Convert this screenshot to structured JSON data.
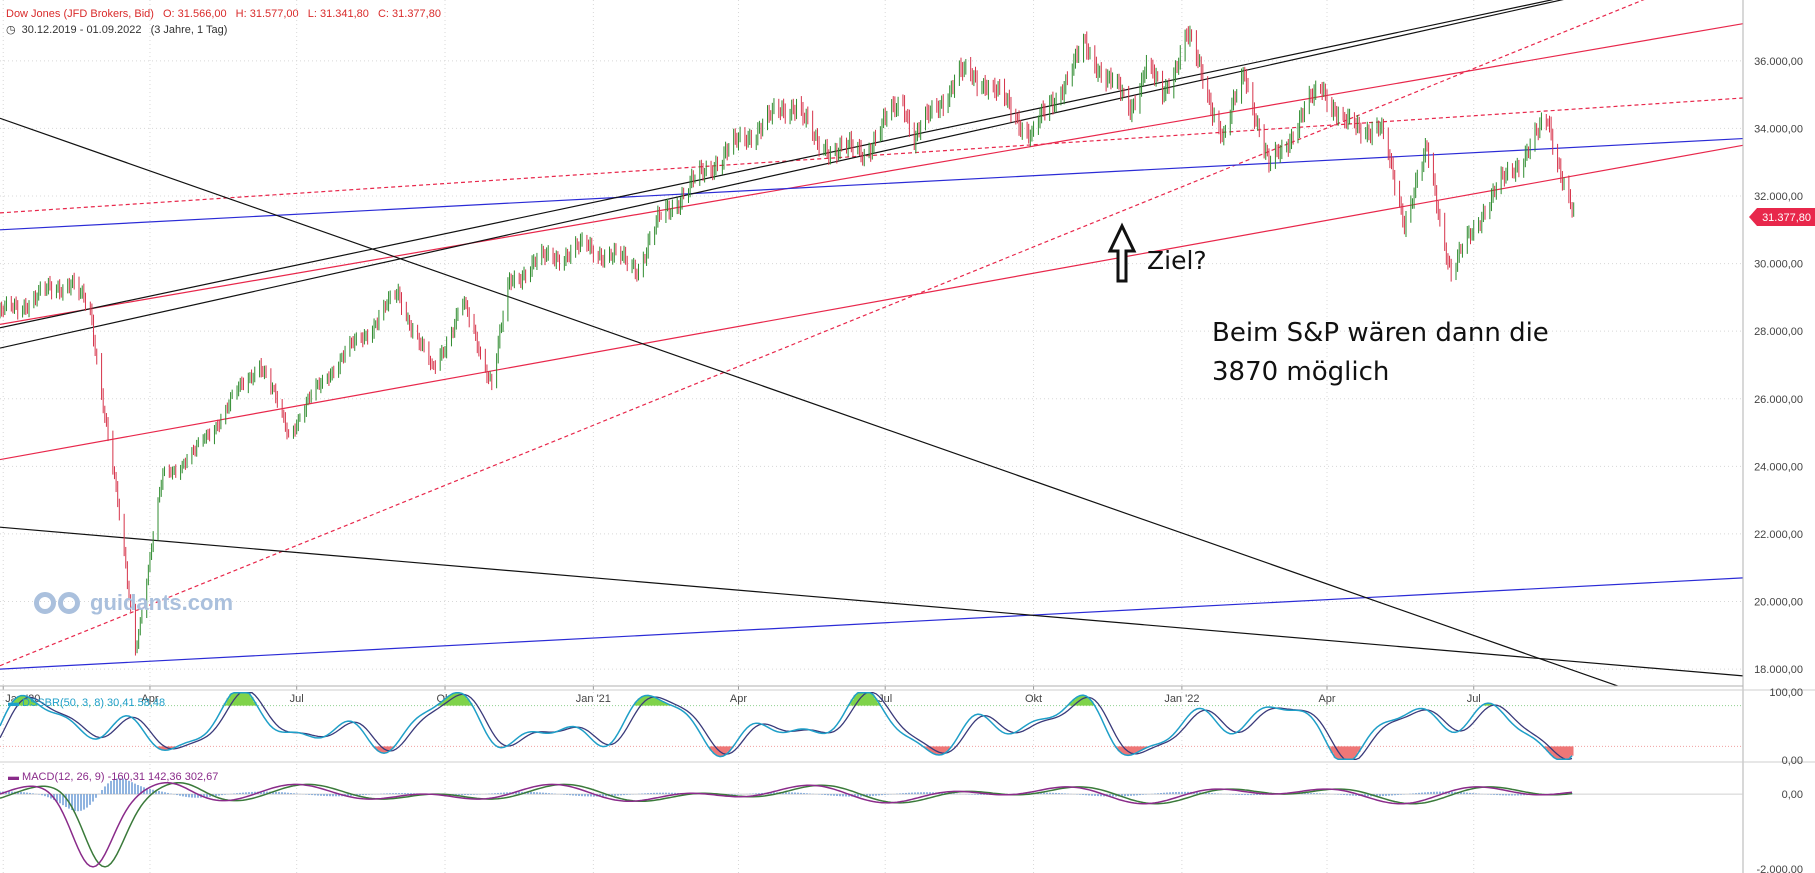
{
  "header": {
    "instrument": "Dow Jones (JFD Brokers, Bid)",
    "open": "O: 31.566,00",
    "high": "H: 31.577,00",
    "low": "L: 31.341,80",
    "close": "C: 31.377,80",
    "range": "30.12.2019 - 01.09.2022",
    "period": "(3 Jahre, 1 Tag)"
  },
  "annotations": {
    "target": "Ziel?",
    "note_line1": "Beim S&P wären dann die",
    "note_line2": "3870 möglich"
  },
  "watermark": "guidants.com",
  "colors": {
    "price_up": "#2e8b2e",
    "price_down": "#d6334a",
    "trend_red": "#e8274b",
    "trend_blue": "#2b2bd6",
    "trend_black": "#111111",
    "stoch_fast": "#1f9fc8",
    "stoch_slow": "#3a3a7a",
    "macd": "#8a2b8a",
    "signal": "#3a7a3a",
    "histogram": "#6b9bd6",
    "fill_green": "#7fd34a",
    "fill_red": "#ee7777",
    "last_price_badge": "#e8274b"
  },
  "chart_data": [
    {
      "type": "line",
      "name": "main",
      "title": "Dow Jones (JFD Brokers, Bid)",
      "last_price_label": "31.377,80",
      "ylim": [
        17500,
        37800
      ],
      "yticks": [
        18000,
        20000,
        22000,
        24000,
        26000,
        28000,
        30000,
        32000,
        34000,
        36000
      ],
      "ytick_labels": [
        "18.000,00",
        "20.000,00",
        "22.000,00",
        "24.000,00",
        "26.000,00",
        "28.000,00",
        "30.000,00",
        "32.000,00",
        "34.000,00",
        "36.000,00"
      ],
      "xlim": [
        "2019-12-30",
        "2022-12-15"
      ],
      "xticks": [
        "2020-01-01",
        "2020-04-01",
        "2020-07-01",
        "2020-10-01",
        "2021-01-01",
        "2021-04-01",
        "2021-07-01",
        "2021-10-01",
        "2022-01-01",
        "2022-04-01",
        "2022-07-01"
      ],
      "xtick_labels": [
        "Jan '20",
        "Apr",
        "Jul",
        "Okt",
        "Jan '21",
        "Apr",
        "Jul",
        "Okt",
        "Jan '22",
        "Apr",
        "Jul"
      ],
      "grid": true,
      "series": [
        {
          "x": [
            "2019-12-30",
            "2020-01-17",
            "2020-02-12",
            "2020-02-24",
            "2020-03-09",
            "2020-03-23",
            "2020-04-09",
            "2020-04-29",
            "2020-06-08",
            "2020-06-26",
            "2020-07-21",
            "2020-08-10",
            "2020-09-02",
            "2020-09-23",
            "2020-10-12",
            "2020-10-30",
            "2020-11-10",
            "2020-11-24",
            "2020-12-28",
            "2021-01-29",
            "2021-02-12",
            "2021-03-17",
            "2021-04-15",
            "2021-05-07",
            "2021-05-19",
            "2021-06-18",
            "2021-07-12",
            "2021-07-19",
            "2021-08-16",
            "2021-09-02",
            "2021-09-30",
            "2021-11-02",
            "2021-11-30",
            "2021-12-10",
            "2021-12-20",
            "2022-01-04",
            "2022-01-27",
            "2022-02-09",
            "2022-02-24",
            "2022-03-29",
            "2022-04-11",
            "2022-05-04",
            "2022-05-19",
            "2022-06-02",
            "2022-06-17",
            "2022-07-08",
            "2022-08-16",
            "2022-09-01"
          ],
          "y": [
            28500,
            28900,
            29500,
            28500,
            24000,
            18590,
            23700,
            24400,
            27100,
            25000,
            26800,
            27800,
            29100,
            26800,
            28800,
            26500,
            29400,
            30000,
            30500,
            29900,
            31400,
            33000,
            34100,
            34800,
            33500,
            33300,
            34900,
            33700,
            35600,
            35400,
            33800,
            36400,
            34600,
            35900,
            34900,
            36800,
            33700,
            35700,
            32800,
            35300,
            34100,
            34000,
            31300,
            33300,
            29700,
            31700,
            34200,
            31378
          ]
        }
      ],
      "trendlines": [
        {
          "color": "red",
          "style": "solid",
          "y_start": 28200,
          "y_end": 37100
        },
        {
          "color": "red",
          "style": "solid",
          "y_start": 24200,
          "y_end": 33500
        },
        {
          "color": "red",
          "style": "dashed",
          "y_start": 31500,
          "y_end": 34900
        },
        {
          "color": "red",
          "style": "dashed",
          "y_start": 18100,
          "y_end": 39000
        },
        {
          "color": "blue",
          "style": "solid",
          "y_start": 31000,
          "y_end": 33700
        },
        {
          "color": "blue",
          "style": "solid",
          "y_start": 18000,
          "y_end": 20700
        },
        {
          "color": "black",
          "style": "solid",
          "y_start": 22200,
          "y_end": 17800
        },
        {
          "color": "black",
          "style": "solid",
          "y_start": 27500,
          "y_end": 39000
        },
        {
          "color": "black",
          "style": "solid",
          "y_start": 28100,
          "y_end": 39000
        },
        {
          "color": "black",
          "style": "solid",
          "y_start": 34300,
          "y_end": 16200
        }
      ]
    },
    {
      "type": "line",
      "name": "DSSBR(50, 3, 8)",
      "label": "DSSBR(50, 3, 8)",
      "value_labels": [
        "30,41",
        "58,48"
      ],
      "ylim": [
        0,
        100
      ],
      "yticks": [
        0,
        100
      ],
      "ytick_labels": [
        "0,00",
        "100,00"
      ]
    },
    {
      "type": "line",
      "name": "MACD(12, 26, 9)",
      "label": "MACD(12, 26, 9)",
      "value_labels": [
        "-160,31",
        "142,36",
        "302,67"
      ],
      "ylim": [
        -2100,
        800
      ],
      "yticks": [
        0,
        -2000
      ],
      "ytick_labels": [
        "0,00",
        "-2.000,00"
      ]
    }
  ]
}
